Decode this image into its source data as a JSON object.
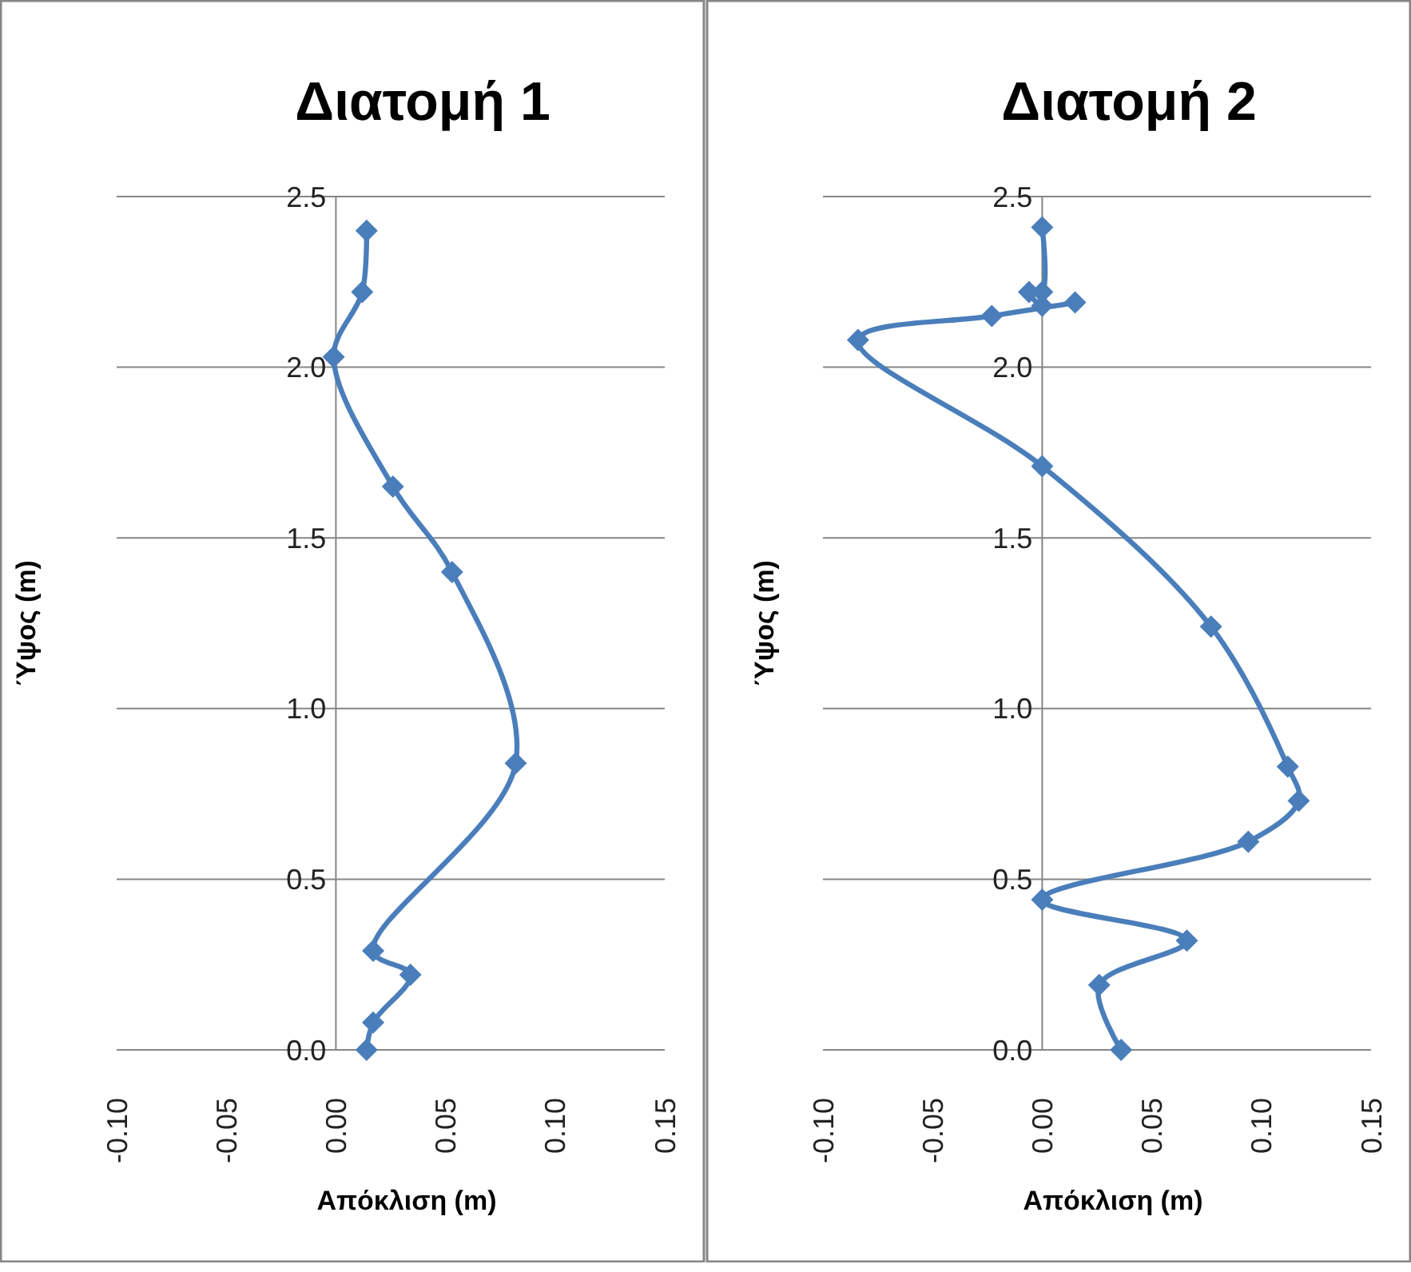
{
  "chart_data": [
    {
      "type": "line",
      "title": "Διατομή 1",
      "xlabel": "Απόκλιση  (m)",
      "ylabel": "Ύψος (m)",
      "xlim": [
        -0.1,
        0.15
      ],
      "xticks": [
        {
          "value": -0.1,
          "label": "-0.10"
        },
        {
          "value": -0.05,
          "label": "-0.05"
        },
        {
          "value": 0,
          "label": "0.00"
        },
        {
          "value": 0.05,
          "label": "0.05"
        },
        {
          "value": 0.1,
          "label": "0.10"
        },
        {
          "value": 0.15,
          "label": "0.15"
        }
      ],
      "ylim": [
        0,
        2.5
      ],
      "yticks": [
        {
          "value": 0,
          "label": "0.0"
        },
        {
          "value": 0.5,
          "label": "0.5"
        },
        {
          "value": 1,
          "label": "1.0"
        },
        {
          "value": 1.5,
          "label": "1.5"
        },
        {
          "value": 2,
          "label": "2.0"
        },
        {
          "value": 2.5,
          "label": "2.5"
        }
      ],
      "grid": "y",
      "marker": "diamond",
      "line_style": "solid",
      "series": [
        {
          "color": "#4a7ebb",
          "x": [
            0.014,
            0.017,
            0.034,
            0.017,
            0.082,
            0.053,
            0.026,
            -0.001,
            0.012,
            0.014
          ],
          "values": [
            0,
            0.08,
            0.22,
            0.29,
            0.84,
            1.4,
            1.65,
            2.03,
            2.22,
            2.4
          ]
        }
      ]
    },
    {
      "type": "line",
      "title": "Διατομή 2",
      "xlabel": "Απόκλιση  (m)",
      "ylabel": "Ύψος (m)",
      "xlim": [
        -0.1,
        0.15
      ],
      "xticks": [
        {
          "value": -0.1,
          "label": "-0.10"
        },
        {
          "value": -0.05,
          "label": "-0.05"
        },
        {
          "value": 0,
          "label": "0.00"
        },
        {
          "value": 0.05,
          "label": "0.05"
        },
        {
          "value": 0.1,
          "label": "0.10"
        },
        {
          "value": 0.15,
          "label": "0.15"
        }
      ],
      "ylim": [
        0,
        2.5
      ],
      "yticks": [
        {
          "value": 0,
          "label": "0.0"
        },
        {
          "value": 0.5,
          "label": "0.5"
        },
        {
          "value": 1,
          "label": "1.0"
        },
        {
          "value": 1.5,
          "label": "1.5"
        },
        {
          "value": 2,
          "label": "2.0"
        },
        {
          "value": 2.5,
          "label": "2.5"
        }
      ],
      "grid": "y",
      "marker": "diamond",
      "line_style": "solid",
      "series": [
        {
          "color": "#4a7ebb",
          "x": [
            0.036,
            0.026,
            0.066,
            0,
            0.094,
            0.117,
            0.112,
            0.077,
            0,
            -0.084,
            -0.023,
            0.015,
            0,
            -0.006,
            0,
            0
          ],
          "values": [
            0,
            0.19,
            0.32,
            0.44,
            0.61,
            0.73,
            0.83,
            1.24,
            1.71,
            2.08,
            2.15,
            2.19,
            2.18,
            2.22,
            2.22,
            2.41
          ]
        }
      ]
    }
  ]
}
